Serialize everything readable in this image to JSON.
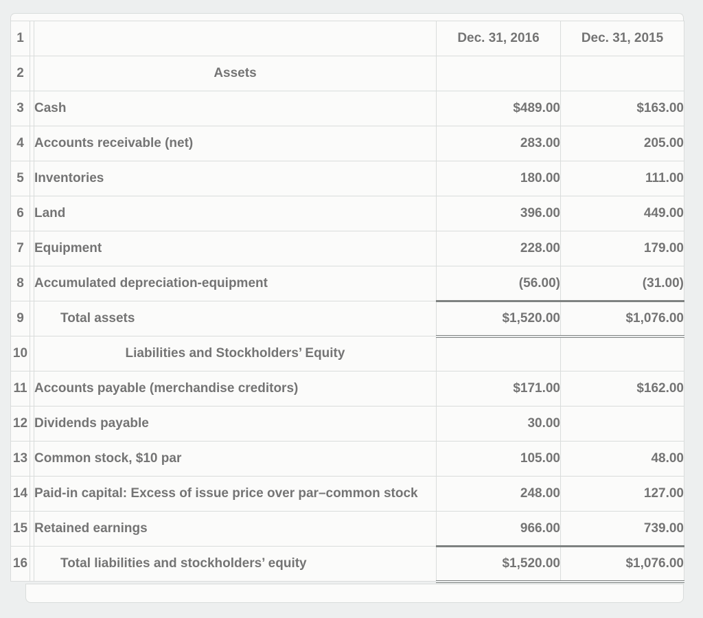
{
  "colors": {
    "page_background": "#edefef",
    "cell_background": "#fbfbfa",
    "grid_border": "#d9dcdb",
    "total_rule": "#7e8281",
    "text": "#747474",
    "row_number_text": "#8c8c8c"
  },
  "table": {
    "column_headers": {
      "col_2016": "Dec. 31, 2016",
      "col_2015": "Dec. 31, 2015"
    },
    "rows": [
      {
        "num": "1",
        "type": "header",
        "label": "",
        "c2016": "Dec. 31, 2016",
        "c2015": "Dec. 31, 2015"
      },
      {
        "num": "2",
        "type": "section",
        "label": "Assets",
        "c2016": "",
        "c2015": ""
      },
      {
        "num": "3",
        "type": "item",
        "label": "Cash",
        "c2016": "$489.00",
        "c2015": "$163.00"
      },
      {
        "num": "4",
        "type": "item",
        "label": "Accounts receivable (net)",
        "c2016": "283.00",
        "c2015": "205.00"
      },
      {
        "num": "5",
        "type": "item",
        "label": "Inventories",
        "c2016": "180.00",
        "c2015": "111.00"
      },
      {
        "num": "6",
        "type": "item",
        "label": "Land",
        "c2016": "396.00",
        "c2015": "449.00"
      },
      {
        "num": "7",
        "type": "item",
        "label": "Equipment",
        "c2016": "228.00",
        "c2015": "179.00"
      },
      {
        "num": "8",
        "type": "item",
        "label": "Accumulated depreciation-equipment",
        "c2016": "(56.00)",
        "c2015": "(31.00)"
      },
      {
        "num": "9",
        "type": "total",
        "label": "Total assets",
        "c2016": "$1,520.00",
        "c2015": "$1,076.00"
      },
      {
        "num": "10",
        "type": "section",
        "label": "Liabilities and Stockholders’ Equity",
        "c2016": "",
        "c2015": ""
      },
      {
        "num": "11",
        "type": "item",
        "label": "Accounts payable (merchandise creditors)",
        "c2016": "$171.00",
        "c2015": "$162.00"
      },
      {
        "num": "12",
        "type": "item",
        "label": "Dividends payable",
        "c2016": "30.00",
        "c2015": ""
      },
      {
        "num": "13",
        "type": "item",
        "label": "Common stock, $10 par",
        "c2016": "105.00",
        "c2015": "48.00"
      },
      {
        "num": "14",
        "type": "item",
        "label": "Paid-in capital: Excess of issue price over par–common stock",
        "c2016": "248.00",
        "c2015": "127.00"
      },
      {
        "num": "15",
        "type": "item",
        "label": "Retained earnings",
        "c2016": "966.00",
        "c2015": "739.00"
      },
      {
        "num": "16",
        "type": "total",
        "label": "Total liabilities and stockholders’ equity",
        "c2016": "$1,520.00",
        "c2015": "$1,076.00"
      }
    ]
  }
}
